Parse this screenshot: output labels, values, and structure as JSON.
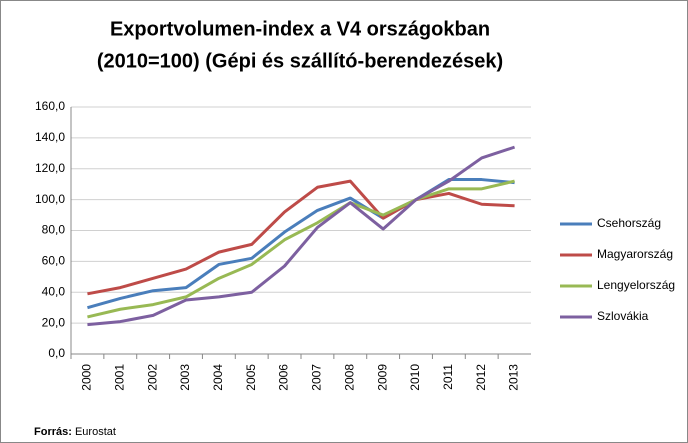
{
  "chart_data": {
    "type": "line",
    "title": "Exportvolumen-index a V4 országokban",
    "subtitle": "(2010=100) (Gépi és szállító-berendezések)",
    "categories": [
      "2000",
      "2001",
      "2002",
      "2003",
      "2004",
      "2005",
      "2006",
      "2007",
      "2008",
      "2009",
      "2010",
      "2011",
      "2012",
      "2013"
    ],
    "series": [
      {
        "name": "Csehország",
        "color": "#4a7ebb",
        "values": [
          30,
          36,
          41,
          43,
          58,
          62,
          79,
          93,
          101,
          88,
          100,
          113,
          113,
          111
        ]
      },
      {
        "name": "Magyarország",
        "color": "#be4b48",
        "values": [
          39,
          43,
          49,
          55,
          66,
          71,
          92,
          108,
          112,
          88,
          100,
          104,
          97,
          96
        ]
      },
      {
        "name": "Lengyelország",
        "color": "#98b954",
        "values": [
          24,
          29,
          32,
          37,
          49,
          58,
          74,
          85,
          98,
          90,
          100,
          107,
          107,
          112
        ]
      },
      {
        "name": "Szlovákia",
        "color": "#7d60a0",
        "values": [
          19,
          21,
          25,
          35,
          37,
          40,
          57,
          82,
          98,
          81,
          100,
          112,
          127,
          134
        ]
      }
    ],
    "ylim": [
      0,
      160
    ],
    "yticks": [
      {
        "value": 0,
        "label": "0,0"
      },
      {
        "value": 20,
        "label": "20,0"
      },
      {
        "value": 40,
        "label": "40,0"
      },
      {
        "value": 60,
        "label": "60,0"
      },
      {
        "value": 80,
        "label": "80,0"
      },
      {
        "value": 100,
        "label": "100,0"
      },
      {
        "value": 120,
        "label": "120,0"
      },
      {
        "value": 140,
        "label": "140,0"
      },
      {
        "value": 160,
        "label": "160,0"
      }
    ],
    "grid": true,
    "legend": "right",
    "source": {
      "label": "Forrás:",
      "text": "Eurostat"
    }
  }
}
